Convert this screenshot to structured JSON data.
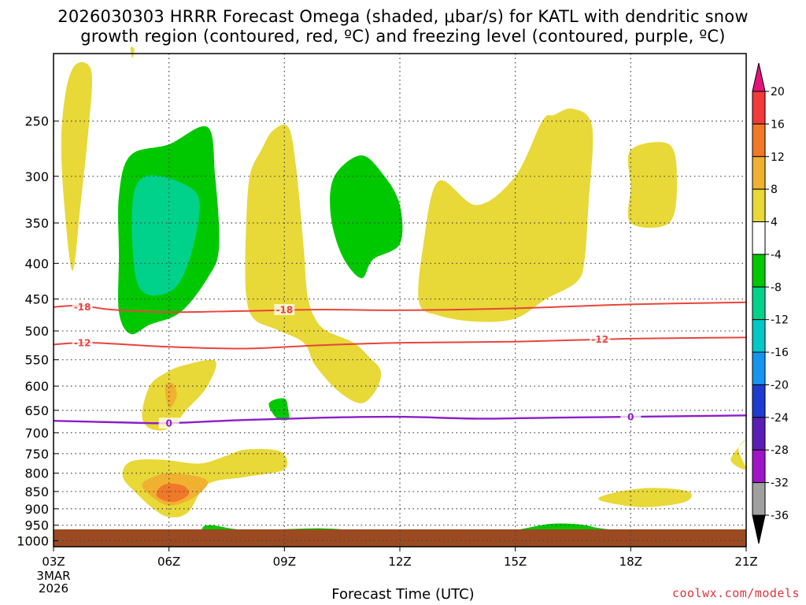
{
  "chart_data": {
    "type": "time-height contour plot",
    "title_line_1": "2026030303 HRRR Forecast Omega (shaded, μbar/s) for KATL with dendritic snow",
    "title_line_2": "growth region (contoured, red, ºC) and freezing level (contoured, purple, ºC)",
    "xlabel": "Forecast Time (UTC)",
    "x_ticks": [
      "03Z",
      "06Z",
      "09Z",
      "12Z",
      "15Z",
      "18Z",
      "21Z"
    ],
    "x_start_label": [
      "3MAR",
      "2026"
    ],
    "x_range_hours": [
      3,
      21
    ],
    "y_ticks": [
      250,
      300,
      350,
      400,
      450,
      500,
      550,
      600,
      650,
      700,
      750,
      800,
      850,
      900,
      950,
      1000
    ],
    "y_range_hPa": [
      200,
      1020
    ],
    "colorbar": {
      "labels": [
        "20",
        "16",
        "12",
        "8",
        "4",
        "-4",
        "-8",
        "-12",
        "-16",
        "-20",
        "-24",
        "-28",
        "-32",
        "-36"
      ],
      "colors": [
        "#e6127c",
        "#f23a3a",
        "#f07828",
        "#f0b030",
        "#e8d838",
        "#ffffff",
        "#00c800",
        "#00d28c",
        "#00c8c8",
        "#1496f0",
        "#1e3cd2",
        "#5a1eb4",
        "#a014c8",
        "#a0a0a0",
        "#000000"
      ]
    },
    "contours": [
      {
        "name": "-18",
        "color": "#e8443c",
        "points": [
          [
            3.0,
            462
          ],
          [
            3.7,
            460
          ],
          [
            4.5,
            466
          ],
          [
            6.0,
            470
          ],
          [
            8.0,
            468
          ],
          [
            10.0,
            466
          ],
          [
            12.0,
            467
          ],
          [
            15.0,
            464
          ],
          [
            18.0,
            458
          ],
          [
            21.0,
            455
          ]
        ],
        "labels": [
          [
            3.75,
            462
          ],
          [
            9.0,
            466
          ]
        ]
      },
      {
        "name": "-12",
        "color": "#e8443c",
        "points": [
          [
            3.0,
            523
          ],
          [
            4.0,
            520
          ],
          [
            6.0,
            527
          ],
          [
            8.0,
            530
          ],
          [
            10.0,
            524
          ],
          [
            12.0,
            520
          ],
          [
            15.0,
            518
          ],
          [
            18.0,
            513
          ],
          [
            21.0,
            511
          ]
        ],
        "labels": [
          [
            3.75,
            520
          ],
          [
            17.2,
            514
          ]
        ]
      },
      {
        "name": "0",
        "color": "#8c1ec8",
        "points": [
          [
            3.0,
            673
          ],
          [
            5.0,
            677
          ],
          [
            6.0,
            678
          ],
          [
            8.0,
            671
          ],
          [
            10.0,
            666
          ],
          [
            12.0,
            664
          ],
          [
            14.0,
            668
          ],
          [
            16.0,
            666
          ],
          [
            18.0,
            664
          ],
          [
            21.0,
            661
          ]
        ],
        "labels": [
          [
            6.0,
            678
          ],
          [
            18.0,
            664
          ]
        ]
      }
    ],
    "omega_regions": [
      {
        "name": "+4 to +8",
        "color": "#e8d838",
        "points": [
          [
            3.5,
            210
          ],
          [
            3.8,
            206
          ],
          [
            4.0,
            216
          ],
          [
            3.9,
            260
          ],
          [
            3.7,
            330
          ],
          [
            3.5,
            410
          ],
          [
            3.3,
            340
          ],
          [
            3.2,
            270
          ],
          [
            3.3,
            230
          ]
        ]
      },
      {
        "name": "+4 to +8",
        "color": "#e8d838",
        "points": [
          [
            5.0,
            196
          ],
          [
            5.1,
            197
          ],
          [
            5.05,
            203
          ]
        ]
      },
      {
        "name": "+4 to +8",
        "color": "#e8d838",
        "points": [
          [
            8.7,
            258
          ],
          [
            9.1,
            255
          ],
          [
            9.3,
            290
          ],
          [
            9.5,
            380
          ],
          [
            9.6,
            445
          ],
          [
            9.8,
            480
          ],
          [
            10.1,
            500
          ],
          [
            10.8,
            520
          ],
          [
            11.2,
            545
          ],
          [
            11.5,
            570
          ],
          [
            11.4,
            605
          ],
          [
            11.0,
            635
          ],
          [
            10.4,
            610
          ],
          [
            9.8,
            560
          ],
          [
            9.5,
            520
          ],
          [
            8.8,
            498
          ],
          [
            8.2,
            480
          ],
          [
            8.0,
            440
          ],
          [
            8.0,
            360
          ],
          [
            8.1,
            300
          ],
          [
            8.4,
            275
          ]
        ]
      },
      {
        "name": "+4 to +8",
        "color": "#e8d838",
        "points": [
          [
            16.0,
            245
          ],
          [
            16.5,
            240
          ],
          [
            17.0,
            255
          ],
          [
            16.9,
            330
          ],
          [
            16.8,
            395
          ],
          [
            16.6,
            425
          ],
          [
            15.8,
            450
          ],
          [
            15.0,
            480
          ],
          [
            14.0,
            485
          ],
          [
            13.0,
            475
          ],
          [
            12.5,
            455
          ],
          [
            12.6,
            380
          ],
          [
            13.0,
            305
          ],
          [
            14.0,
            330
          ],
          [
            15.0,
            300
          ],
          [
            15.7,
            250
          ]
        ]
      },
      {
        "name": "+4 to +8",
        "color": "#e8d838",
        "points": [
          [
            18.0,
            275
          ],
          [
            19.0,
            270
          ],
          [
            19.2,
            305
          ],
          [
            19.0,
            350
          ],
          [
            18.0,
            350
          ],
          [
            18.0,
            310
          ]
        ]
      },
      {
        "name": "+4 to +8",
        "color": "#e8d838",
        "points": [
          [
            6.4,
            560
          ],
          [
            7.2,
            552
          ],
          [
            7.0,
            600
          ],
          [
            6.5,
            645
          ],
          [
            6.0,
            690
          ],
          [
            5.5,
            690
          ],
          [
            5.3,
            660
          ],
          [
            5.5,
            600
          ],
          [
            5.9,
            575
          ]
        ]
      },
      {
        "name": "+4 to +8",
        "color": "#e8d838",
        "points": [
          [
            8.0,
            740
          ],
          [
            8.9,
            745
          ],
          [
            9.0,
            790
          ],
          [
            8.0,
            810
          ],
          [
            7.0,
            830
          ],
          [
            6.5,
            910
          ],
          [
            6.0,
            925
          ],
          [
            5.6,
            900
          ],
          [
            5.2,
            860
          ],
          [
            4.8,
            810
          ],
          [
            5.0,
            770
          ],
          [
            5.8,
            765
          ],
          [
            6.8,
            775
          ],
          [
            7.5,
            755
          ]
        ]
      },
      {
        "name": "+4 to +8",
        "color": "#e8d838",
        "points": [
          [
            17.5,
            855
          ],
          [
            18.5,
            840
          ],
          [
            19.5,
            850
          ],
          [
            19.4,
            880
          ],
          [
            18.3,
            895
          ],
          [
            17.2,
            875
          ]
        ]
      },
      {
        "name": "+4 to +8",
        "color": "#e8d838",
        "points": [
          [
            21.0,
            715
          ],
          [
            20.8,
            740
          ],
          [
            21.0,
            790
          ],
          [
            20.6,
            765
          ]
        ]
      },
      {
        "name": "+8 to +12",
        "color": "#f0b030",
        "points": [
          [
            5.9,
            600
          ],
          [
            6.1,
            595
          ],
          [
            6.2,
            620
          ],
          [
            6.0,
            645
          ]
        ]
      },
      {
        "name": "+8 to +12",
        "color": "#f0b030",
        "points": [
          [
            6.0,
            800
          ],
          [
            6.8,
            810
          ],
          [
            7.0,
            830
          ],
          [
            6.6,
            870
          ],
          [
            6.0,
            890
          ],
          [
            5.5,
            860
          ],
          [
            5.3,
            830
          ],
          [
            5.6,
            810
          ]
        ]
      },
      {
        "name": "+12 to +16",
        "color": "#f07828",
        "points": [
          [
            6.0,
            828
          ],
          [
            6.4,
            835
          ],
          [
            6.5,
            860
          ],
          [
            6.1,
            880
          ],
          [
            5.7,
            865
          ],
          [
            5.75,
            840
          ]
        ]
      },
      {
        "name": "-4 to -8",
        "color": "#00c800",
        "points": [
          [
            6.0,
            270
          ],
          [
            7.0,
            255
          ],
          [
            7.2,
            300
          ],
          [
            7.3,
            380
          ],
          [
            7.0,
            420
          ],
          [
            6.3,
            470
          ],
          [
            5.5,
            490
          ],
          [
            5.0,
            505
          ],
          [
            4.7,
            470
          ],
          [
            4.7,
            390
          ],
          [
            4.7,
            320
          ],
          [
            5.0,
            280
          ]
        ]
      },
      {
        "name": "-8 to -12",
        "color": "#00d28c",
        "points": [
          [
            5.4,
            300
          ],
          [
            6.4,
            308
          ],
          [
            6.8,
            330
          ],
          [
            6.5,
            400
          ],
          [
            6.0,
            440
          ],
          [
            5.2,
            430
          ],
          [
            5.05,
            330
          ]
        ]
      },
      {
        "name": "-4 to -8",
        "color": "#00c800",
        "points": [
          [
            11.0,
            280
          ],
          [
            11.6,
            300
          ],
          [
            12.0,
            330
          ],
          [
            12.0,
            375
          ],
          [
            11.3,
            395
          ],
          [
            11.0,
            420
          ],
          [
            10.5,
            390
          ],
          [
            10.2,
            340
          ],
          [
            10.3,
            300
          ]
        ]
      },
      {
        "name": "-4 to -8",
        "color": "#00c800",
        "points": [
          [
            9.0,
            625
          ],
          [
            9.1,
            650
          ],
          [
            9.1,
            670
          ],
          [
            8.8,
            667
          ],
          [
            8.6,
            635
          ]
        ]
      },
      {
        "name": "-4 to -8",
        "color": "#00c800",
        "points": [
          [
            3.0,
            990
          ],
          [
            4.0,
            981
          ],
          [
            6.5,
            982
          ],
          [
            7.0,
            950
          ],
          [
            8.0,
            965
          ],
          [
            10.0,
            960
          ],
          [
            11.0,
            970
          ],
          [
            12.0,
            980
          ],
          [
            14.0,
            975
          ],
          [
            15.0,
            965
          ],
          [
            16.0,
            945
          ],
          [
            17.0,
            955
          ],
          [
            17.0,
            990
          ],
          [
            3.0,
            990
          ]
        ]
      }
    ]
  },
  "credit": "coolwx.com/models"
}
